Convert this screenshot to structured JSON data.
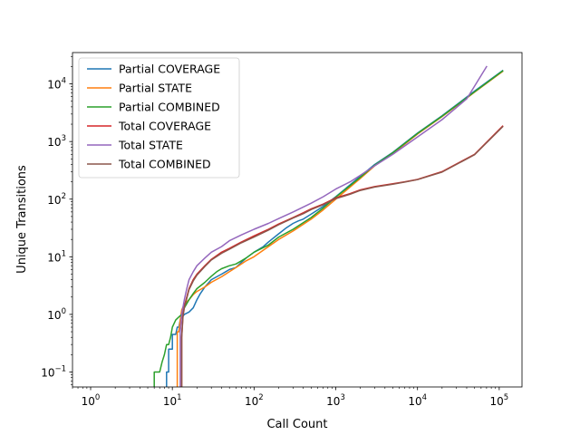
{
  "chart_data": {
    "type": "line",
    "title": "",
    "xlabel": "Call Count",
    "ylabel": "Unique Transitions",
    "xscale": "log",
    "yscale": "log",
    "xlim": [
      0.6,
      190000
    ],
    "ylim": [
      0.055,
      35000
    ],
    "grid": false,
    "legend_position": "upper-left",
    "x_ticks": [
      {
        "value": 1,
        "base": "10",
        "exp": "0"
      },
      {
        "value": 10,
        "base": "10",
        "exp": "1"
      },
      {
        "value": 100,
        "base": "10",
        "exp": "2"
      },
      {
        "value": 1000,
        "base": "10",
        "exp": "3"
      },
      {
        "value": 10000,
        "base": "10",
        "exp": "4"
      },
      {
        "value": 100000,
        "base": "10",
        "exp": "5"
      }
    ],
    "y_ticks": [
      {
        "value": 0.1,
        "base": "10",
        "exp": "−1"
      },
      {
        "value": 1,
        "base": "10",
        "exp": "0"
      },
      {
        "value": 10,
        "base": "10",
        "exp": "1"
      },
      {
        "value": 100,
        "base": "10",
        "exp": "2"
      },
      {
        "value": 1000,
        "base": "10",
        "exp": "3"
      },
      {
        "value": 10000,
        "base": "10",
        "exp": "4"
      }
    ],
    "series": [
      {
        "name": "Partial COVERAGE",
        "color": "#1f77b4",
        "points": [
          [
            8.5,
            0.05
          ],
          [
            8.5,
            0.1
          ],
          [
            9,
            0.1
          ],
          [
            9,
            0.25
          ],
          [
            10,
            0.25
          ],
          [
            10,
            0.45
          ],
          [
            11,
            0.45
          ],
          [
            11.5,
            0.6
          ],
          [
            12,
            0.6
          ],
          [
            12.5,
            0.8
          ],
          [
            14,
            1.0
          ],
          [
            16,
            1.1
          ],
          [
            18,
            1.3
          ],
          [
            20,
            1.8
          ],
          [
            22,
            2.3
          ],
          [
            25,
            3.0
          ],
          [
            30,
            4.0
          ],
          [
            35,
            4.5
          ],
          [
            40,
            5.0
          ],
          [
            45,
            5.5
          ],
          [
            50,
            6.0
          ],
          [
            60,
            6.5
          ],
          [
            70,
            8.0
          ],
          [
            80,
            9.5
          ],
          [
            100,
            12
          ],
          [
            130,
            15
          ],
          [
            150,
            18
          ],
          [
            200,
            25
          ],
          [
            250,
            32
          ],
          [
            300,
            38
          ],
          [
            350,
            42
          ],
          [
            400,
            45
          ],
          [
            500,
            55
          ],
          [
            700,
            75
          ],
          [
            1000,
            110
          ],
          [
            2000,
            250
          ],
          [
            3000,
            400
          ],
          [
            5000,
            650
          ],
          [
            10000,
            1400
          ],
          [
            20000,
            2800
          ],
          [
            50000,
            7500
          ],
          [
            110000,
            17000
          ]
        ]
      },
      {
        "name": "Partial STATE",
        "color": "#ff7f0e",
        "points": [
          [
            11.5,
            0.05
          ],
          [
            11.5,
            0.5
          ],
          [
            12,
            0.5
          ],
          [
            12.5,
            0.8
          ],
          [
            13,
            1.2
          ],
          [
            14,
            1.5
          ],
          [
            16,
            1.8
          ],
          [
            18,
            2.2
          ],
          [
            20,
            2.5
          ],
          [
            25,
            3.0
          ],
          [
            30,
            3.6
          ],
          [
            40,
            4.5
          ],
          [
            50,
            5.5
          ],
          [
            60,
            6.5
          ],
          [
            70,
            7.5
          ],
          [
            80,
            8.5
          ],
          [
            100,
            10
          ],
          [
            150,
            15
          ],
          [
            200,
            20
          ],
          [
            300,
            28
          ],
          [
            500,
            45
          ],
          [
            700,
            65
          ],
          [
            1000,
            100
          ],
          [
            2000,
            230
          ],
          [
            3000,
            380
          ],
          [
            5000,
            620
          ],
          [
            10000,
            1350
          ],
          [
            20000,
            2700
          ],
          [
            50000,
            7200
          ],
          [
            110000,
            16500
          ]
        ]
      },
      {
        "name": "Partial COMBINED",
        "color": "#2ca02c",
        "points": [
          [
            6,
            0.05
          ],
          [
            6,
            0.1
          ],
          [
            7,
            0.1
          ],
          [
            7.5,
            0.15
          ],
          [
            8,
            0.2
          ],
          [
            8.5,
            0.3
          ],
          [
            9,
            0.3
          ],
          [
            9.5,
            0.4
          ],
          [
            10,
            0.6
          ],
          [
            11,
            0.8
          ],
          [
            12,
            0.9
          ],
          [
            13,
            1.0
          ],
          [
            14,
            1.3
          ],
          [
            16,
            1.8
          ],
          [
            18,
            2.3
          ],
          [
            20,
            2.8
          ],
          [
            25,
            3.6
          ],
          [
            30,
            4.6
          ],
          [
            35,
            5.5
          ],
          [
            40,
            6.2
          ],
          [
            50,
            7.0
          ],
          [
            60,
            7.5
          ],
          [
            70,
            8.5
          ],
          [
            80,
            9.5
          ],
          [
            100,
            12
          ],
          [
            150,
            16
          ],
          [
            200,
            22
          ],
          [
            300,
            30
          ],
          [
            500,
            48
          ],
          [
            700,
            70
          ],
          [
            1000,
            108
          ],
          [
            2000,
            240
          ],
          [
            3000,
            390
          ],
          [
            5000,
            640
          ],
          [
            10000,
            1380
          ],
          [
            20000,
            2750
          ],
          [
            50000,
            7300
          ],
          [
            110000,
            16800
          ]
        ]
      },
      {
        "name": "Total COVERAGE",
        "color": "#d62728",
        "points": [
          [
            13,
            0.05
          ],
          [
            13,
            0.4
          ],
          [
            13.5,
            1.0
          ],
          [
            14,
            1.4
          ],
          [
            15,
            2.0
          ],
          [
            16,
            2.8
          ],
          [
            18,
            4.0
          ],
          [
            20,
            5.0
          ],
          [
            25,
            7.0
          ],
          [
            30,
            9.0
          ],
          [
            40,
            12
          ],
          [
            50,
            14
          ],
          [
            70,
            18
          ],
          [
            100,
            23
          ],
          [
            150,
            30
          ],
          [
            200,
            37
          ],
          [
            300,
            48
          ],
          [
            400,
            58
          ],
          [
            500,
            68
          ],
          [
            700,
            82
          ],
          [
            1000,
            105
          ],
          [
            1500,
            125
          ],
          [
            2000,
            145
          ],
          [
            3000,
            165
          ],
          [
            5000,
            185
          ],
          [
            7000,
            200
          ],
          [
            10000,
            220
          ],
          [
            20000,
            300
          ],
          [
            50000,
            600
          ],
          [
            110000,
            1850
          ]
        ]
      },
      {
        "name": "Total STATE",
        "color": "#9467bd",
        "points": [
          [
            12.5,
            0.05
          ],
          [
            12.5,
            0.5
          ],
          [
            13,
            1.0
          ],
          [
            14,
            1.8
          ],
          [
            15,
            2.8
          ],
          [
            16,
            4.0
          ],
          [
            18,
            5.5
          ],
          [
            20,
            7.0
          ],
          [
            25,
            9.5
          ],
          [
            30,
            12
          ],
          [
            40,
            15
          ],
          [
            50,
            19
          ],
          [
            70,
            24
          ],
          [
            100,
            30
          ],
          [
            150,
            38
          ],
          [
            200,
            46
          ],
          [
            300,
            60
          ],
          [
            500,
            85
          ],
          [
            700,
            110
          ],
          [
            1000,
            150
          ],
          [
            1500,
            200
          ],
          [
            2000,
            260
          ],
          [
            3000,
            380
          ],
          [
            5000,
            600
          ],
          [
            10000,
            1200
          ],
          [
            20000,
            2400
          ],
          [
            40000,
            5500
          ],
          [
            70000,
            20000
          ]
        ]
      },
      {
        "name": "Total COMBINED",
        "color": "#8c564b",
        "points": [
          [
            13,
            0.05
          ],
          [
            13,
            0.4
          ],
          [
            13.5,
            0.9
          ],
          [
            14,
            1.3
          ],
          [
            15,
            1.9
          ],
          [
            16,
            2.7
          ],
          [
            18,
            3.8
          ],
          [
            20,
            4.8
          ],
          [
            25,
            6.8
          ],
          [
            30,
            8.8
          ],
          [
            40,
            11.5
          ],
          [
            50,
            13.5
          ],
          [
            70,
            17.5
          ],
          [
            100,
            22
          ],
          [
            150,
            29
          ],
          [
            200,
            36
          ],
          [
            300,
            47
          ],
          [
            400,
            56
          ],
          [
            500,
            66
          ],
          [
            700,
            80
          ],
          [
            1000,
            102
          ],
          [
            1500,
            122
          ],
          [
            2000,
            142
          ],
          [
            3000,
            162
          ],
          [
            5000,
            182
          ],
          [
            7000,
            198
          ],
          [
            10000,
            218
          ],
          [
            20000,
            295
          ],
          [
            50000,
            590
          ],
          [
            110000,
            1800
          ]
        ]
      }
    ]
  }
}
